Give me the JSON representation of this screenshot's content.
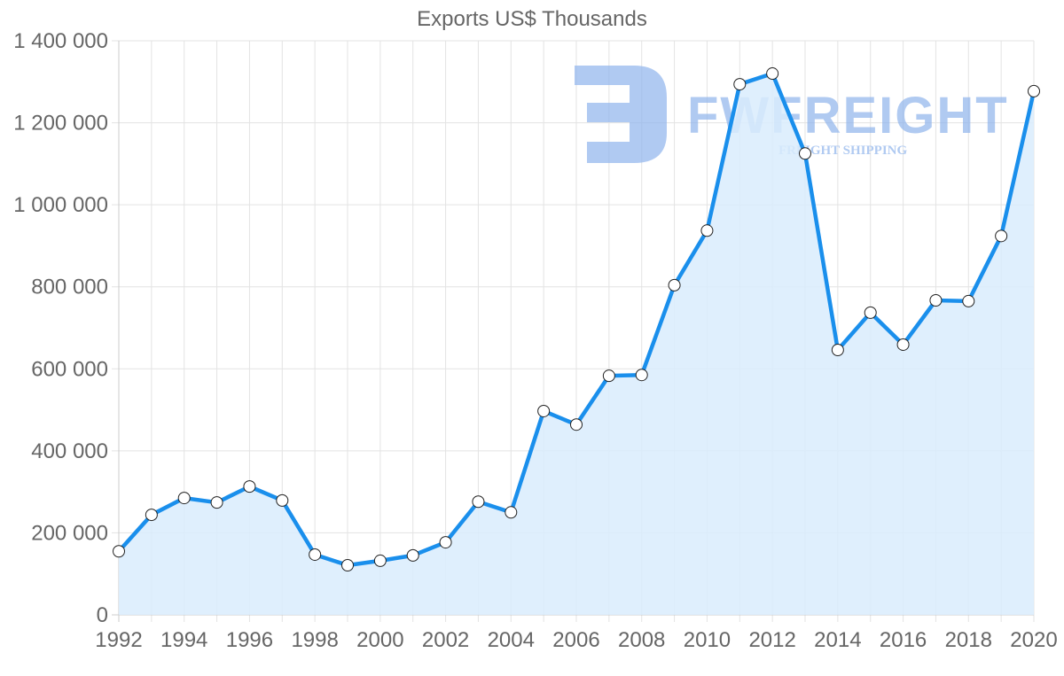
{
  "chart_data": {
    "type": "area",
    "title": "Exports US$ Thousands",
    "xlabel": "",
    "ylabel": "",
    "x": [
      1992,
      1993,
      1994,
      1995,
      1996,
      1997,
      1998,
      1999,
      2000,
      2001,
      2002,
      2003,
      2004,
      2005,
      2006,
      2007,
      2008,
      2009,
      2010,
      2011,
      2012,
      2013,
      2014,
      2015,
      2016,
      2017,
      2018,
      2019,
      2020
    ],
    "series": [
      {
        "name": "Exports US$ Thousands",
        "color": "#1a8fec",
        "fill": "#d9ecfd",
        "values": [
          155000,
          244000,
          285000,
          274000,
          313000,
          279000,
          147000,
          121000,
          132000,
          145000,
          177000,
          276000,
          250000,
          497000,
          464000,
          583000,
          585000,
          804000,
          937000,
          1294000,
          1320000,
          1125000,
          646000,
          737000,
          659000,
          767000,
          765000,
          924000,
          1277000
        ]
      }
    ],
    "ylim": [
      0,
      1400000
    ],
    "yticks": [
      0,
      200000,
      400000,
      600000,
      800000,
      1000000,
      1200000,
      1400000
    ],
    "ytick_labels": [
      "0",
      "200 000",
      "400 000",
      "600 000",
      "800 000",
      "1 000 000",
      "1 200 000",
      "1 400 000"
    ],
    "xticks": [
      1992,
      1994,
      1996,
      1998,
      2000,
      2002,
      2004,
      2006,
      2008,
      2010,
      2012,
      2014,
      2016,
      2018,
      2020
    ],
    "xtick_labels": [
      "1992",
      "1994",
      "1996",
      "1998",
      "2000",
      "2002",
      "2004",
      "2006",
      "2008",
      "2010",
      "2012",
      "2014",
      "2016",
      "2018",
      "2020"
    ],
    "grid": true,
    "legend": "none"
  },
  "watermark": {
    "brand": "FWFREIGHT",
    "tagline": "FREIGHT SHIPPING",
    "color": "#8fb4ec"
  }
}
